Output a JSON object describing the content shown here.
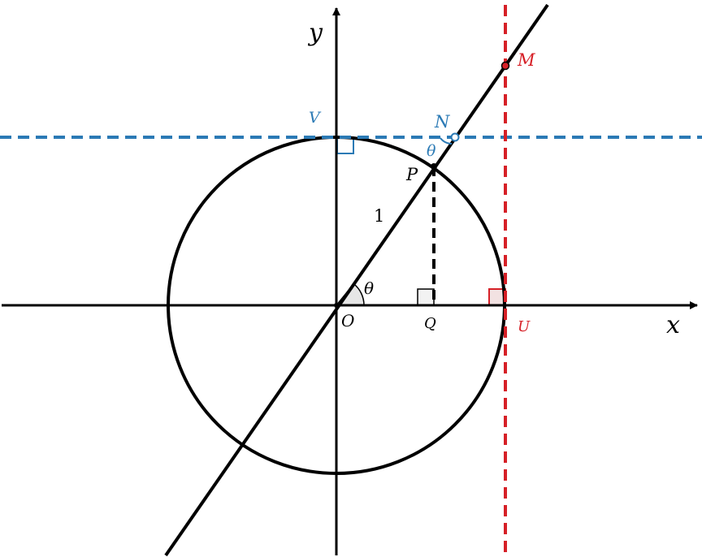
{
  "colors": {
    "black": "#000000",
    "blue": "#2b7ab5",
    "red": "#d62027",
    "angle_fill": "#e6e6e6",
    "right_angle_fill": "#f2e2e2"
  },
  "labels": {
    "x_axis": "x",
    "y_axis": "y",
    "origin": "O",
    "point_p": "P",
    "point_q": "Q",
    "point_u": "U",
    "point_v": "V",
    "point_n": "N",
    "point_m": "M",
    "radius": "1",
    "angle_at_origin": "θ",
    "angle_at_n": "θ"
  }
}
